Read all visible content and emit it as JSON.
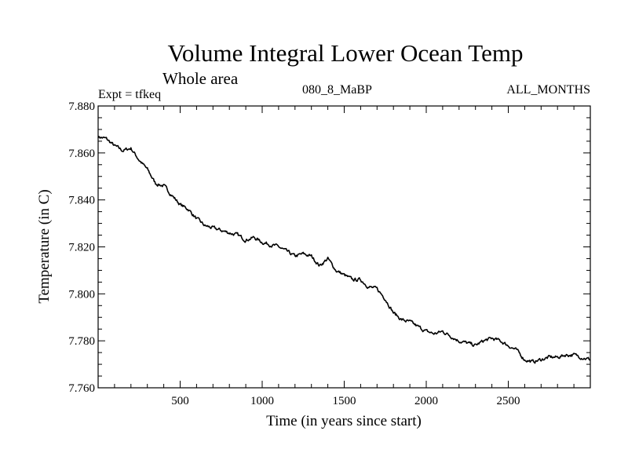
{
  "header": {
    "title": "Volume Integral Lower Ocean Temp",
    "subtitle": "Whole area",
    "expt": "Expt = tfkeq",
    "run": "080_8_MaBP",
    "months": "ALL_MONTHS"
  },
  "chart_data": {
    "type": "line",
    "title": "Volume Integral Lower Ocean Temp",
    "subtitle": "Whole area",
    "xlabel": "Time (in years since start)",
    "ylabel": "Temperature (in C)",
    "xlim": [
      0,
      3000
    ],
    "ylim": [
      7.76,
      7.88
    ],
    "xticks": [
      500,
      1000,
      1500,
      2000,
      2500
    ],
    "xtick_labels": [
      "500",
      "1000",
      "1500",
      "2000",
      "2500"
    ],
    "yticks": [
      7.76,
      7.78,
      7.8,
      7.82,
      7.84,
      7.86,
      7.88
    ],
    "ytick_labels": [
      "7.760",
      "7.780",
      "7.800",
      "7.820",
      "7.840",
      "7.860",
      "7.880"
    ],
    "grid": false,
    "line_color": "#000000",
    "series": [
      {
        "x": [
          0,
          50,
          100,
          150,
          200,
          250,
          300,
          350,
          400,
          450,
          500,
          550,
          600,
          650,
          700,
          750,
          800,
          850,
          900,
          950,
          1000,
          1050,
          1100,
          1150,
          1200,
          1250,
          1300,
          1350,
          1400,
          1450,
          1500,
          1550,
          1600,
          1650,
          1700,
          1750,
          1800,
          1850,
          1900,
          1950,
          2000,
          2050,
          2100,
          2150,
          2200,
          2250,
          2300,
          2350,
          2400,
          2450,
          2500,
          2550,
          2600,
          2650,
          2700,
          2750,
          2800,
          2850,
          2900,
          2950,
          3000
        ],
        "values": [
          7.867,
          7.866,
          7.863,
          7.861,
          7.862,
          7.857,
          7.853,
          7.847,
          7.846,
          7.842,
          7.838,
          7.836,
          7.832,
          7.829,
          7.828,
          7.827,
          7.826,
          7.825,
          7.823,
          7.824,
          7.822,
          7.821,
          7.82,
          7.818,
          7.816,
          7.817,
          7.816,
          7.812,
          7.815,
          7.81,
          7.808,
          7.806,
          7.806,
          7.803,
          7.802,
          7.798,
          7.792,
          7.789,
          7.788,
          7.786,
          7.784,
          7.783,
          7.784,
          7.782,
          7.78,
          7.779,
          7.778,
          7.78,
          7.781,
          7.78,
          7.778,
          7.776,
          7.772,
          7.771,
          7.772,
          7.773,
          7.773,
          7.774,
          7.774,
          7.773,
          7.772
        ]
      }
    ]
  }
}
